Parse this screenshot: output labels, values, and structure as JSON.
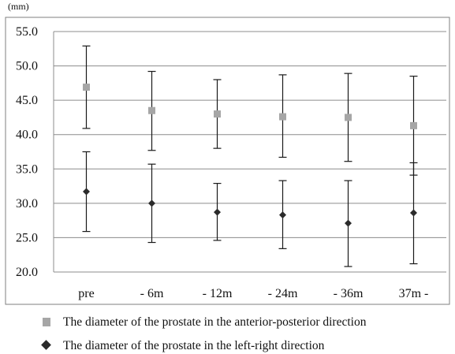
{
  "chart_data": {
    "type": "scatter",
    "unit_label": "(mm)",
    "categories": [
      "pre",
      "- 6m",
      "- 12m",
      "- 24m",
      "- 36m",
      "37m -"
    ],
    "ylim": [
      20.0,
      55.0
    ],
    "yticks": [
      "20.0",
      "25.0",
      "30.0",
      "35.0",
      "40.0",
      "45.0",
      "50.0",
      "55.0"
    ],
    "grid": true,
    "legend_position": "bottom",
    "series": [
      {
        "name": "The diameter of the prostate in the anterior-posterior direction",
        "marker": "square",
        "color": "#a6a6a6",
        "values": [
          46.9,
          43.5,
          43.0,
          42.6,
          42.5,
          41.3
        ],
        "error_low": [
          40.9,
          37.7,
          38.0,
          36.7,
          36.1,
          34.1
        ],
        "error_high": [
          52.9,
          49.2,
          48.0,
          48.7,
          48.9,
          48.5
        ]
      },
      {
        "name": "The diameter of the prostate in the left-right direction",
        "marker": "diamond",
        "color": "#2b2b2b",
        "values": [
          31.7,
          30.0,
          28.7,
          28.3,
          27.1,
          28.6
        ],
        "error_low": [
          25.9,
          24.3,
          24.6,
          23.4,
          20.8,
          21.2
        ],
        "error_high": [
          37.5,
          35.7,
          32.9,
          33.3,
          33.3,
          35.9
        ]
      }
    ]
  }
}
